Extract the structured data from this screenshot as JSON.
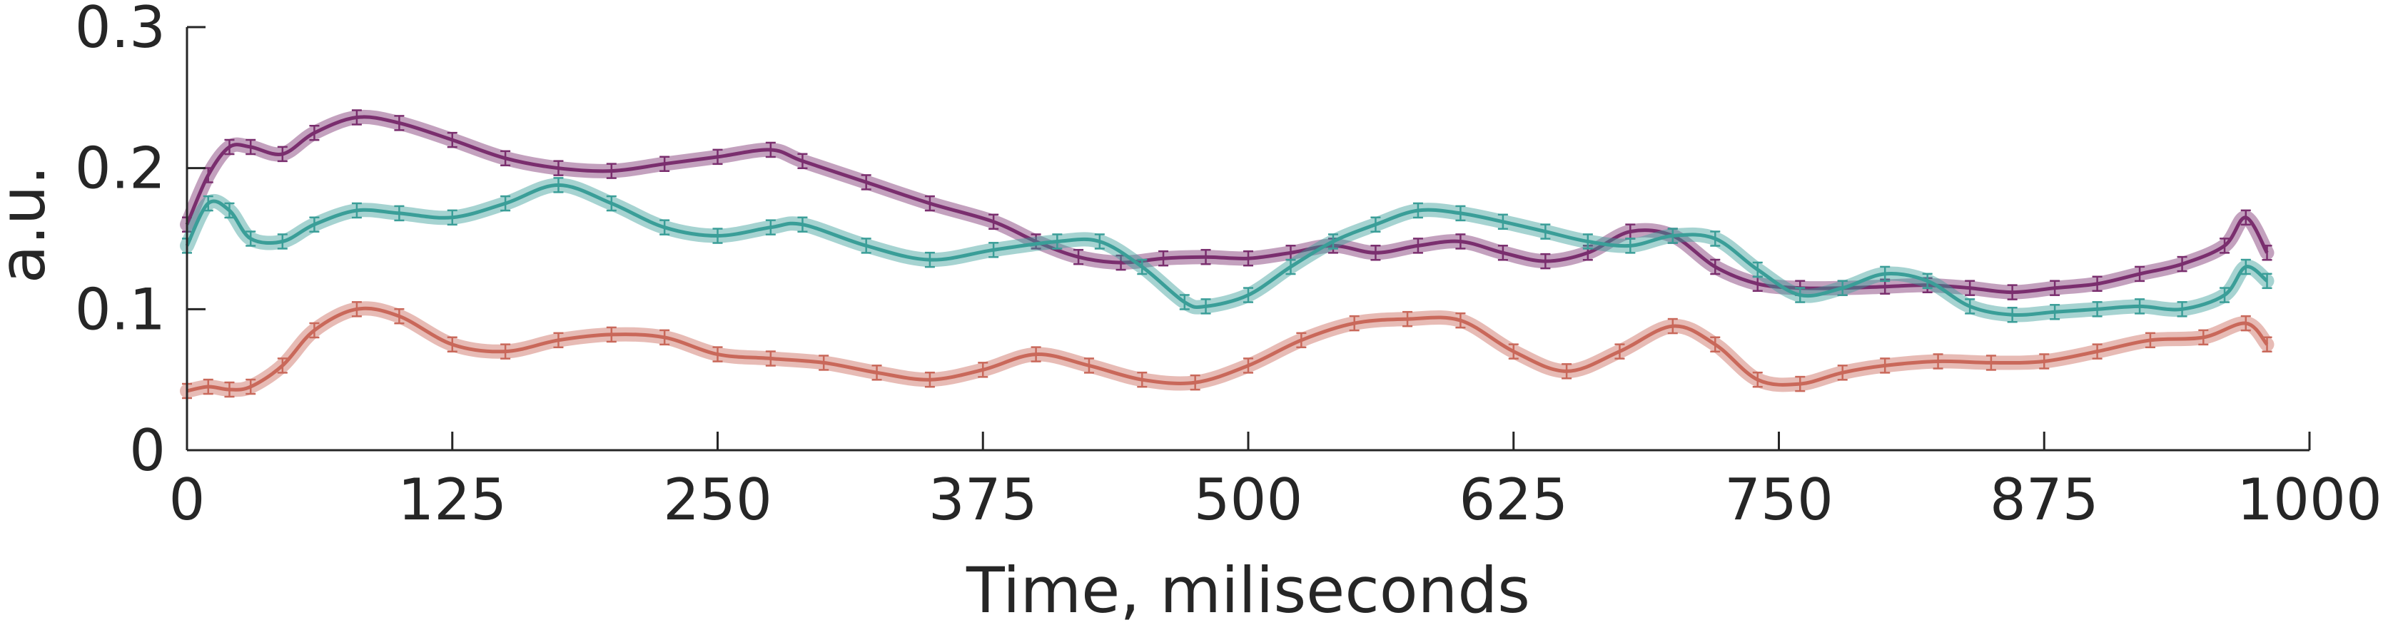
{
  "chart_data": {
    "type": "line",
    "title": "",
    "xlabel": "Time, miliseconds",
    "ylabel": "a.u.",
    "xlim": [
      0,
      1000
    ],
    "ylim": [
      0,
      0.3
    ],
    "xticks": [
      0,
      125,
      250,
      375,
      500,
      625,
      750,
      875,
      1000
    ],
    "xtick_labels": [
      "0",
      "125",
      "250",
      "375",
      "500",
      "625",
      "750",
      "875",
      "1000"
    ],
    "yticks": [
      0,
      0.1,
      0.2,
      0.3
    ],
    "ytick_labels": [
      "0",
      "0.1",
      "0.2",
      "0.3"
    ],
    "grid": false,
    "error_bars": true,
    "series": [
      {
        "color": "#7a2e6e",
        "x": [
          0,
          10,
          20,
          30,
          45,
          60,
          80,
          100,
          125,
          150,
          175,
          200,
          225,
          250,
          275,
          290,
          320,
          350,
          380,
          400,
          420,
          440,
          460,
          480,
          500,
          520,
          540,
          560,
          580,
          600,
          620,
          640,
          660,
          680,
          700,
          720,
          740,
          760,
          780,
          800,
          820,
          840,
          860,
          880,
          900,
          920,
          940,
          960,
          970,
          980
        ],
        "y": [
          0.16,
          0.195,
          0.215,
          0.215,
          0.21,
          0.225,
          0.236,
          0.232,
          0.22,
          0.207,
          0.2,
          0.198,
          0.203,
          0.208,
          0.213,
          0.205,
          0.19,
          0.175,
          0.162,
          0.148,
          0.137,
          0.133,
          0.136,
          0.137,
          0.136,
          0.14,
          0.145,
          0.14,
          0.145,
          0.148,
          0.14,
          0.134,
          0.14,
          0.155,
          0.152,
          0.13,
          0.118,
          0.115,
          0.115,
          0.116,
          0.117,
          0.115,
          0.112,
          0.115,
          0.118,
          0.125,
          0.132,
          0.145,
          0.165,
          0.14
        ]
      },
      {
        "color": "#3a9e98",
        "x": [
          0,
          10,
          20,
          30,
          45,
          60,
          80,
          100,
          125,
          150,
          175,
          200,
          225,
          250,
          275,
          290,
          320,
          350,
          380,
          410,
          430,
          450,
          470,
          480,
          500,
          520,
          540,
          560,
          580,
          600,
          620,
          640,
          660,
          680,
          700,
          720,
          740,
          760,
          780,
          800,
          820,
          840,
          860,
          880,
          900,
          920,
          940,
          960,
          970,
          980
        ],
        "y": [
          0.145,
          0.175,
          0.17,
          0.15,
          0.148,
          0.16,
          0.17,
          0.168,
          0.165,
          0.175,
          0.188,
          0.175,
          0.158,
          0.152,
          0.158,
          0.16,
          0.145,
          0.135,
          0.142,
          0.148,
          0.148,
          0.13,
          0.105,
          0.102,
          0.11,
          0.13,
          0.148,
          0.16,
          0.17,
          0.168,
          0.162,
          0.155,
          0.148,
          0.145,
          0.152,
          0.15,
          0.128,
          0.11,
          0.115,
          0.125,
          0.12,
          0.102,
          0.096,
          0.098,
          0.1,
          0.102,
          0.1,
          0.11,
          0.13,
          0.12
        ]
      },
      {
        "color": "#c9685a",
        "x": [
          0,
          10,
          20,
          30,
          45,
          60,
          80,
          100,
          125,
          150,
          175,
          200,
          225,
          250,
          275,
          300,
          325,
          350,
          375,
          400,
          425,
          450,
          475,
          500,
          525,
          550,
          575,
          600,
          625,
          650,
          675,
          700,
          720,
          740,
          760,
          780,
          800,
          825,
          850,
          875,
          900,
          925,
          950,
          970,
          980
        ],
        "y": [
          0.042,
          0.045,
          0.043,
          0.045,
          0.06,
          0.085,
          0.1,
          0.095,
          0.075,
          0.07,
          0.078,
          0.082,
          0.08,
          0.068,
          0.065,
          0.062,
          0.055,
          0.05,
          0.057,
          0.068,
          0.06,
          0.05,
          0.048,
          0.06,
          0.078,
          0.09,
          0.093,
          0.092,
          0.07,
          0.056,
          0.07,
          0.088,
          0.075,
          0.05,
          0.047,
          0.055,
          0.06,
          0.063,
          0.062,
          0.063,
          0.07,
          0.078,
          0.08,
          0.09,
          0.075
        ]
      }
    ]
  }
}
